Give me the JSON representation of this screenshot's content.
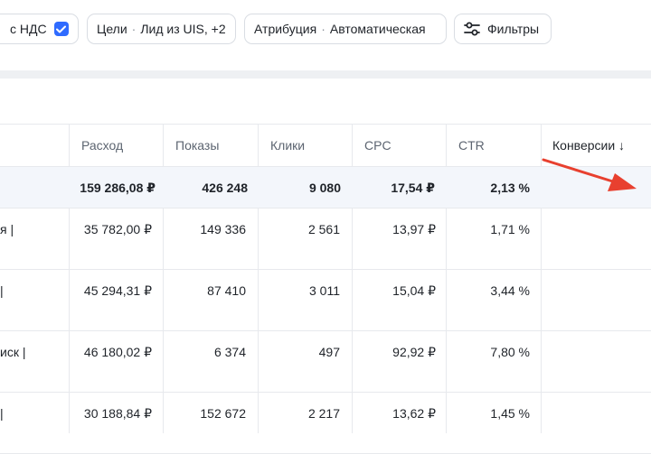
{
  "toolbar": {
    "vat_label": "с НДС",
    "vat_checked": true,
    "goals_label": "Цели",
    "goals_value": "Лид из UIS, +2",
    "attribution_label": "Атрибуция",
    "attribution_value": "Автоматическая",
    "filters_label": "Фильтры",
    "separator": "·"
  },
  "table": {
    "headers": {
      "spend": "Расход",
      "impressions": "Показы",
      "clicks": "Клики",
      "cpc": "CPC",
      "ctr": "CTR",
      "conversions": "Конверсии ↓"
    },
    "total": {
      "spend": "159 286,08 ₽",
      "impressions": "426 248",
      "clicks": "9 080",
      "cpc": "17,54 ₽",
      "ctr": "2,13 %"
    },
    "rows": [
      {
        "name": "я |",
        "spend": "35 782,00 ₽",
        "impressions": "149 336",
        "clicks": "2 561",
        "cpc": "13,97 ₽",
        "ctr": "1,71 %"
      },
      {
        "name": "|",
        "spend": "45 294,31 ₽",
        "impressions": "87 410",
        "clicks": "3 011",
        "cpc": "15,04 ₽",
        "ctr": "3,44 %"
      },
      {
        "name": "иск |",
        "spend": "46 180,02 ₽",
        "impressions": "6 374",
        "clicks": "497",
        "cpc": "92,92 ₽",
        "ctr": "7,80 %"
      },
      {
        "name": "|",
        "spend": "30 188,84 ₽",
        "impressions": "152 672",
        "clicks": "2 217",
        "cpc": "13,62 ₽",
        "ctr": "1,45 %"
      }
    ]
  },
  "colors": {
    "accent": "#2f6bff",
    "annotation_arrow": "#e8402f",
    "total_row_bg": "#f3f6fb"
  }
}
